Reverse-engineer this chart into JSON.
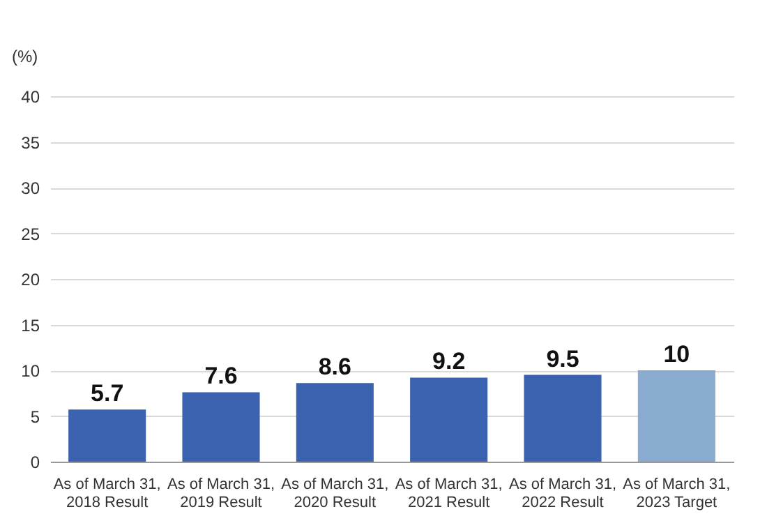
{
  "chart_data": {
    "type": "bar",
    "ylabel": "(%)",
    "categories": [
      "As of March 31, 2018 Result",
      "As of March 31, 2019 Result",
      "As of March 31, 2020 Result",
      "As of March 31, 2021 Result",
      "As of March 31, 2022 Result",
      "As of March 31, 2023 Target"
    ],
    "values": [
      5.7,
      7.6,
      8.6,
      9.2,
      9.5,
      10
    ],
    "colors": [
      "#3a62ae",
      "#3a62ae",
      "#3a62ae",
      "#3a62ae",
      "#3a62ae",
      "#8aabd0"
    ],
    "ylim": [
      0,
      40
    ],
    "yticks": [
      0,
      5,
      10,
      15,
      20,
      25,
      30,
      35,
      40
    ],
    "grid": "y",
    "data_labels": true
  }
}
